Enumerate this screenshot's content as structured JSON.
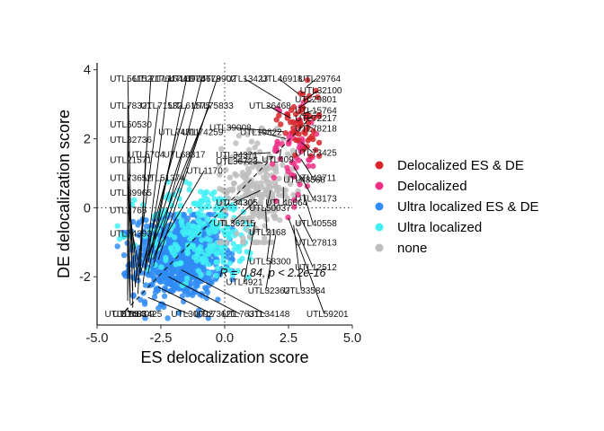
{
  "chart_data": {
    "type": "scatter",
    "xlabel": "ES delocalization score",
    "ylabel": "DE delocalization score",
    "xlim": [
      -5.0,
      5.0
    ],
    "ylim": [
      -3.4,
      4.2
    ],
    "x_ticks": [
      "-5.0",
      "-2.5",
      "0.0",
      "2.5",
      "5.0"
    ],
    "y_ticks": [
      "-2",
      "0",
      "2",
      "4"
    ],
    "reference_lines": {
      "x": 0,
      "y": 0,
      "style": "dotted"
    },
    "regression_line": {
      "style": "dashed",
      "x": [
        -3.9,
        3.6
      ],
      "y": [
        -3.0,
        2.8
      ]
    },
    "stat_annotation": "R = 0.84, p < 2.2e-16",
    "legend": {
      "position": "right",
      "entries": [
        {
          "label": "Delocalized ES & DE",
          "color": "#d7262b"
        },
        {
          "label": "Delocalized",
          "color": "#ee2f86"
        },
        {
          "label": "Ultra localized ES & DE",
          "color": "#2f8cf5"
        },
        {
          "label": "Ultra localized",
          "color": "#3ff0f5"
        },
        {
          "label": "none",
          "color": "#bdbdbd"
        }
      ]
    },
    "clusters": [
      {
        "group": "Ultra localized ES & DE",
        "cx": -1.8,
        "cy": -1.4,
        "sx": 0.85,
        "sy": 0.6,
        "n": 900,
        "xmin": -4.2,
        "xmax": 0.3,
        "ymin": -3.2,
        "ymax": -0.2
      },
      {
        "group": "Ultra localized",
        "cx": -0.8,
        "cy": -0.7,
        "sx": 1.2,
        "sy": 0.7,
        "n": 260,
        "xmin": -4.2,
        "xmax": 1.0,
        "ymin": -2.4,
        "ymax": 1.5
      },
      {
        "group": "none",
        "cx": 1.3,
        "cy": 0.5,
        "sx": 0.7,
        "sy": 0.75,
        "n": 230,
        "xmin": -0.2,
        "xmax": 3.0,
        "ymin": -1.0,
        "ymax": 2.3
      },
      {
        "group": "Delocalized",
        "cx": 2.7,
        "cy": 1.6,
        "sx": 0.5,
        "sy": 0.8,
        "n": 55,
        "xmin": 1.5,
        "xmax": 3.7,
        "ymin": -0.8,
        "ymax": 3.6
      },
      {
        "group": "Delocalized ES & DE",
        "cx": 3.0,
        "cy": 2.5,
        "sx": 0.4,
        "sy": 0.55,
        "n": 60,
        "xmin": 2.0,
        "xmax": 3.7,
        "ymin": 1.5,
        "ymax": 3.7
      }
    ],
    "gene_labels": [
      {
        "text": "UTL56152",
        "lx": -4.5,
        "ly": 3.75,
        "px": -3.6,
        "py": -2.9
      },
      {
        "text": "UTL71764",
        "lx": -3.6,
        "ly": 3.75,
        "px": -3.4,
        "py": -2.5
      },
      {
        "text": "UTL16441",
        "lx": -2.9,
        "ly": 3.75,
        "px": -3.2,
        "py": -2.2
      },
      {
        "text": "UTL6974",
        "lx": -2.2,
        "ly": 3.75,
        "px": -3.0,
        "py": -1.9
      },
      {
        "text": "UTL5678",
        "lx": -1.6,
        "ly": 3.75,
        "px": -2.8,
        "py": -1.7
      },
      {
        "text": "UTL9902",
        "lx": -1.0,
        "ly": 3.75,
        "px": -2.6,
        "py": -1.5
      },
      {
        "text": "UTL78321",
        "lx": -4.5,
        "ly": 2.97,
        "px": -3.8,
        "py": -2.5
      },
      {
        "text": "UTL71532",
        "lx": -3.3,
        "ly": 2.97,
        "px": -3.5,
        "py": -2.2
      },
      {
        "text": "UTL61575",
        "lx": -2.2,
        "ly": 2.97,
        "px": -3.3,
        "py": -1.9
      },
      {
        "text": "UTL75833",
        "lx": -1.3,
        "ly": 2.97,
        "px": -3.1,
        "py": -1.6
      },
      {
        "text": "UTL50530",
        "lx": -4.5,
        "ly": 2.42,
        "px": -3.8,
        "py": -2.7
      },
      {
        "text": "UTL74311",
        "lx": -2.6,
        "ly": 2.2,
        "px": -3.0,
        "py": -1.6
      },
      {
        "text": "UTL74259",
        "lx": -1.7,
        "ly": 2.2,
        "px": -2.8,
        "py": -1.5
      },
      {
        "text": "UTL32736",
        "lx": -4.5,
        "ly": 1.97,
        "px": -3.7,
        "py": -2.6
      },
      {
        "text": "UTL5704",
        "lx": -3.8,
        "ly": 1.55,
        "px": -3.3,
        "py": -1.8
      },
      {
        "text": "UTL68317",
        "lx": -2.4,
        "ly": 1.55,
        "px": -3.0,
        "py": -1.4
      },
      {
        "text": "UTL21571",
        "lx": -4.5,
        "ly": 1.39,
        "px": -3.6,
        "py": -2.4
      },
      {
        "text": "UTL1170",
        "lx": -1.5,
        "ly": 1.08,
        "px": -2.7,
        "py": -1.3
      },
      {
        "text": "UTL73652",
        "lx": -4.5,
        "ly": 0.87,
        "px": -3.5,
        "py": -2.3
      },
      {
        "text": "UTL51374",
        "lx": -3.2,
        "ly": 0.87,
        "px": -3.1,
        "py": -1.8
      },
      {
        "text": "UTL39965",
        "lx": -4.5,
        "ly": 0.44,
        "px": -3.4,
        "py": -2.1
      },
      {
        "text": "UTL2766",
        "lx": -4.5,
        "ly": -0.07,
        "px": -3.3,
        "py": -1.9
      },
      {
        "text": "UTL74393",
        "lx": -4.5,
        "ly": -0.75,
        "px": -3.7,
        "py": -2.8
      },
      {
        "text": "UTL81403",
        "lx": -4.7,
        "ly": -3.08,
        "px": -3.8,
        "py": -2.9
      },
      {
        "text": "UTL81409",
        "lx": -4.4,
        "ly": -3.08,
        "px": -3.8,
        "py": -2.95
      },
      {
        "text": "UTL81425",
        "lx": -4.1,
        "ly": -3.08,
        "px": -3.8,
        "py": -3.0
      },
      {
        "text": "UTL30092",
        "lx": -2.1,
        "ly": -3.08,
        "px": -3.0,
        "py": -2.6
      },
      {
        "text": "UTL73621",
        "lx": -1.2,
        "ly": -3.08,
        "px": -2.6,
        "py": -2.3
      },
      {
        "text": "UTL76311",
        "lx": -0.1,
        "ly": -3.08,
        "px": -2.2,
        "py": -2.0
      },
      {
        "text": "UTL34148",
        "lx": 0.9,
        "ly": -3.08,
        "px": -1.7,
        "py": -1.8
      },
      {
        "text": "UTL59201",
        "lx": 3.2,
        "ly": -3.08,
        "px": 2.5,
        "py": -0.3
      },
      {
        "text": "UTL13423",
        "lx": 0.05,
        "ly": 3.75,
        "px": 2.2,
        "py": 3.1
      },
      {
        "text": "UTL46918",
        "lx": 1.4,
        "ly": 3.75,
        "px": 2.9,
        "py": 3.3
      },
      {
        "text": "UTL29764",
        "lx": 2.9,
        "ly": 3.75,
        "px": 3.2,
        "py": 3.5
      },
      {
        "text": "UTL32100",
        "lx": 2.95,
        "ly": 3.4,
        "px": 3.1,
        "py": 3.1
      },
      {
        "text": "UTL29801",
        "lx": 2.75,
        "ly": 3.15,
        "px": 2.9,
        "py": 2.9
      },
      {
        "text": "UTL26468",
        "lx": 0.95,
        "ly": 2.97,
        "px": 2.6,
        "py": 2.6
      },
      {
        "text": "UTL15764",
        "lx": 2.75,
        "ly": 2.82,
        "px": 3.0,
        "py": 2.7
      },
      {
        "text": "UTL72217",
        "lx": 2.75,
        "ly": 2.6,
        "px": 3.1,
        "py": 2.6
      },
      {
        "text": "UTL39008",
        "lx": -0.6,
        "ly": 2.33,
        "px": 2.3,
        "py": 2.2
      },
      {
        "text": "UTL78218",
        "lx": 2.75,
        "ly": 2.3,
        "px": 3.2,
        "py": 2.4
      },
      {
        "text": "UTL19822",
        "lx": 0.6,
        "ly": 2.2,
        "px": 2.4,
        "py": 2.0
      },
      {
        "text": "UTL73425",
        "lx": 2.75,
        "ly": 1.6,
        "px": 3.0,
        "py": 1.9
      },
      {
        "text": "UTL34371",
        "lx": -0.35,
        "ly": 1.53,
        "px": 1.8,
        "py": 1.6
      },
      {
        "text": "UTL409",
        "lx": 1.45,
        "ly": 1.4,
        "px": 2.2,
        "py": 1.7
      },
      {
        "text": "UTL36723",
        "lx": -0.35,
        "ly": 1.35,
        "px": 1.5,
        "py": 1.3
      },
      {
        "text": "UTL43711",
        "lx": 2.75,
        "ly": 0.87,
        "px": 3.0,
        "py": 1.4
      },
      {
        "text": "UTL48568",
        "lx": 2.3,
        "ly": 0.82,
        "px": 2.7,
        "py": 1.2
      },
      {
        "text": "UTL43173",
        "lx": 2.75,
        "ly": 0.27,
        "px": 3.0,
        "py": 0.9
      },
      {
        "text": "UTL34305",
        "lx": -0.35,
        "ly": 0.15,
        "px": 1.4,
        "py": 0.5
      },
      {
        "text": "UTL46664",
        "lx": 1.6,
        "ly": 0.15,
        "px": 2.3,
        "py": 0.6
      },
      {
        "text": "UTL50037",
        "lx": 0.95,
        "ly": 0.0,
        "px": 1.8,
        "py": 0.5
      },
      {
        "text": "UTL36215",
        "lx": -0.45,
        "ly": -0.45,
        "px": 1.2,
        "py": 0.2
      },
      {
        "text": "UTL40558",
        "lx": 2.75,
        "ly": -0.45,
        "px": 3.1,
        "py": 0.4
      },
      {
        "text": "UTL2168",
        "lx": 0.95,
        "ly": -0.7,
        "px": 1.6,
        "py": 0.0
      },
      {
        "text": "UTL27813",
        "lx": 2.75,
        "ly": -1.0,
        "px": 2.9,
        "py": -0.2
      },
      {
        "text": "UTL58300",
        "lx": 0.95,
        "ly": -1.55,
        "px": 1.8,
        "py": -0.7
      },
      {
        "text": "UTL12512",
        "lx": 2.75,
        "ly": -1.72,
        "px": 2.8,
        "py": -0.6
      },
      {
        "text": "UTL4921",
        "lx": 0.05,
        "ly": -2.15,
        "px": 1.2,
        "py": -0.4
      },
      {
        "text": "UTL32362",
        "lx": 0.9,
        "ly": -2.4,
        "px": 2.0,
        "py": -0.8
      },
      {
        "text": "UTL33584",
        "lx": 2.3,
        "ly": -2.4,
        "px": 2.7,
        "py": -0.5
      }
    ]
  }
}
